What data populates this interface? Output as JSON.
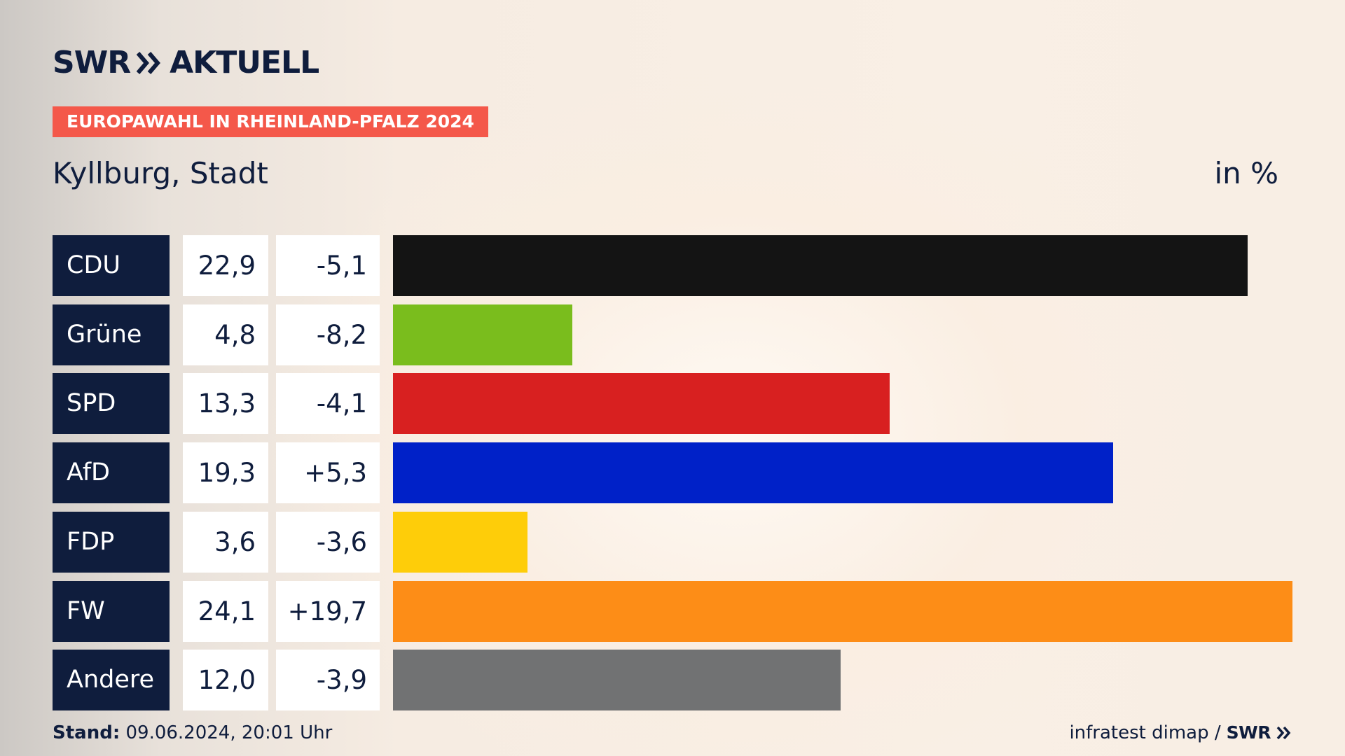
{
  "header": {
    "logo_text": "SWR",
    "logo_text_2": "AKTUELL",
    "tag": "EUROPAWAHL IN RHEINLAND-PFALZ 2024",
    "region": "Kyllburg, Stadt",
    "unit": "in %"
  },
  "colors": {
    "navy": "#0f1d3d",
    "tag_red": "#f4584a"
  },
  "chart_data": {
    "type": "bar",
    "orientation": "horizontal",
    "title": "Kyllburg, Stadt",
    "unit": "in %",
    "categories": [
      "CDU",
      "Grüne",
      "SPD",
      "AfD",
      "FDP",
      "FW",
      "Andere"
    ],
    "values": [
      22.9,
      4.8,
      13.3,
      19.3,
      3.6,
      24.1,
      12.0
    ],
    "value_labels": [
      "22,9",
      "4,8",
      "13,3",
      "19,3",
      "3,6",
      "24,1",
      "12,0"
    ],
    "diffs": [
      -5.1,
      -8.2,
      -4.1,
      5.3,
      -3.6,
      19.7,
      -3.9
    ],
    "diff_labels": [
      "-5,1",
      "-8,2",
      "-4,1",
      "+5,3",
      "-3,6",
      "+19,7",
      "-3,9"
    ],
    "bar_colors": [
      "#141414",
      "#7abd1d",
      "#d82020",
      "#0021c8",
      "#fecd09",
      "#fd8d17",
      "#717273"
    ],
    "xlim": [
      0,
      24.1
    ]
  },
  "footer": {
    "stand_label": "Stand:",
    "stand_value": "09.06.2024, 20:01 Uhr",
    "source": "infratest dimap /",
    "source_brand": "SWR"
  }
}
